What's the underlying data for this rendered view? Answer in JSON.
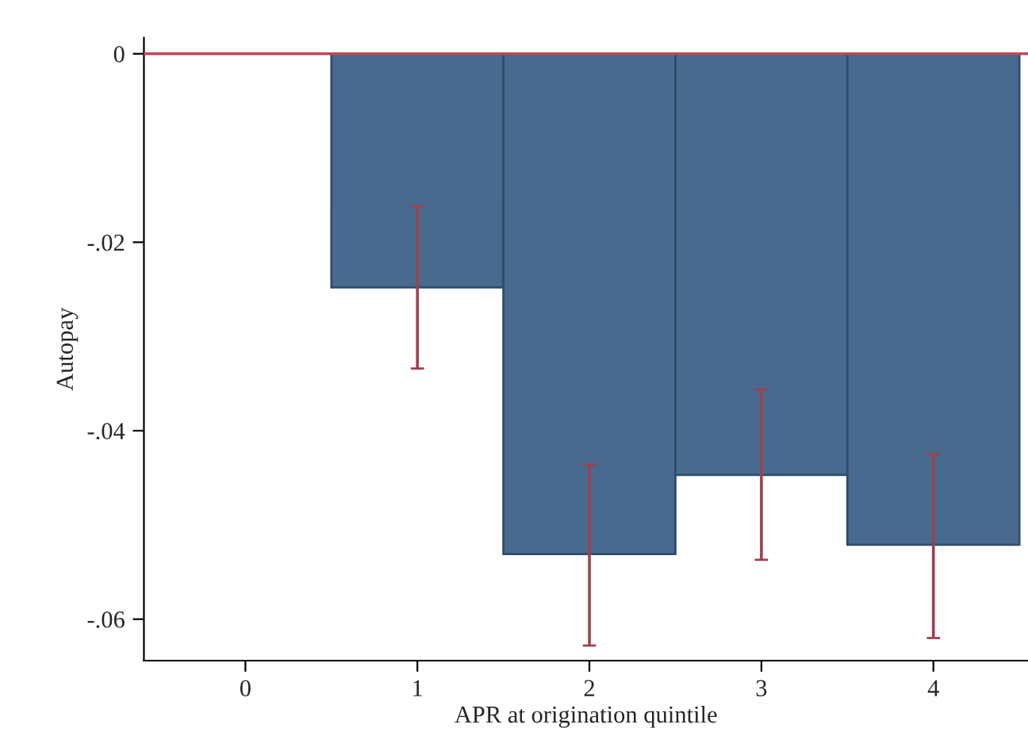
{
  "chart_data": {
    "type": "bar",
    "xlabel": "APR at origination quintile",
    "ylabel": "Autopay",
    "x": [
      0,
      1,
      2,
      3,
      4
    ],
    "series": [
      {
        "color": "#476a8e",
        "values": [
          0,
          -0.0248,
          -0.0531,
          -0.0447,
          -0.0521
        ],
        "errors": [
          null,
          [
            -0.0334,
            -0.0162
          ],
          [
            -0.0628,
            -0.0436
          ],
          [
            -0.0537,
            -0.0356
          ],
          [
            -0.062,
            -0.0425
          ]
        ]
      }
    ],
    "xlim": [
      -0.59,
      4.55
    ],
    "xticks": [
      0,
      1,
      2,
      3,
      4
    ],
    "ylim": [
      -0.0644,
      0.0017
    ],
    "yticks": [
      {
        "value": -0.06,
        "label": "-.06"
      },
      {
        "value": -0.04,
        "label": "-.04"
      },
      {
        "value": -0.02,
        "label": "-.02"
      },
      0
    ],
    "ref_lines": [
      {
        "axis": "y",
        "value": 0,
        "color": "#c0485a"
      }
    ],
    "grid": false
  }
}
